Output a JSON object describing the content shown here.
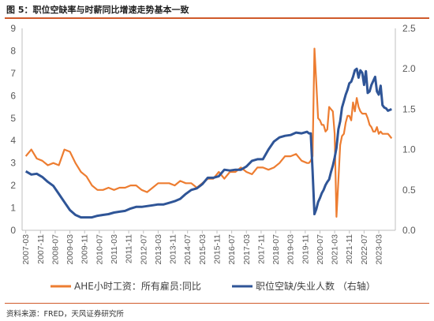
{
  "title": "图 5：职位空缺率与时薪同比增速走势基本一致",
  "source": "资料来源：FRED，天风证券研究所",
  "colors": {
    "orange": "#ED7D31",
    "blue": "#2F5597"
  },
  "legend": {
    "s1": "AHE小时工资：所有雇员:同比",
    "s2": "职位空缺/失业人数 （右轴）"
  },
  "chart_data": {
    "type": "line",
    "xlabel": "",
    "ylabel": "",
    "x_ticks": [
      "2007-03",
      "2007-11",
      "2008-07",
      "2009-03",
      "2009-11",
      "2010-07",
      "2011-03",
      "2011-11",
      "2012-07",
      "2013-03",
      "2013-11",
      "2014-07",
      "2015-03",
      "2015-11",
      "2016-07",
      "2017-03",
      "2017-11",
      "2018-07",
      "2019-03",
      "2019-11",
      "2020-07",
      "2021-03",
      "2021-11",
      "2022-07",
      "2023-03"
    ],
    "y_left": {
      "min": 0,
      "max": 9,
      "ticks": [
        "0",
        "1",
        "2",
        "3",
        "4",
        "5",
        "6",
        "7",
        "8",
        "9"
      ]
    },
    "y_right": {
      "min": 0,
      "max": 2.5,
      "ticks": [
        "0.0",
        "0.5",
        "1.0",
        "1.5",
        "2.0",
        "2.5"
      ]
    },
    "series": [
      {
        "name": "AHE小时工资：所有雇员:同比",
        "axis": "left",
        "color": "#ED7D31",
        "points": [
          [
            "2007-03",
            3.3
          ],
          [
            "2007-06",
            3.6
          ],
          [
            "2007-09",
            3.2
          ],
          [
            "2007-12",
            3.1
          ],
          [
            "2008-03",
            2.9
          ],
          [
            "2008-06",
            3.0
          ],
          [
            "2008-09",
            2.9
          ],
          [
            "2008-12",
            3.6
          ],
          [
            "2009-03",
            3.5
          ],
          [
            "2009-06",
            3.0
          ],
          [
            "2009-09",
            2.6
          ],
          [
            "2009-12",
            2.4
          ],
          [
            "2010-03",
            2.0
          ],
          [
            "2010-06",
            1.8
          ],
          [
            "2010-09",
            1.8
          ],
          [
            "2010-12",
            1.9
          ],
          [
            "2011-03",
            1.8
          ],
          [
            "2011-06",
            1.9
          ],
          [
            "2011-09",
            1.9
          ],
          [
            "2011-12",
            2.0
          ],
          [
            "2012-03",
            2.0
          ],
          [
            "2012-06",
            1.8
          ],
          [
            "2012-09",
            1.7
          ],
          [
            "2012-12",
            1.9
          ],
          [
            "2013-03",
            2.1
          ],
          [
            "2013-06",
            2.1
          ],
          [
            "2013-09",
            2.1
          ],
          [
            "2013-12",
            2.0
          ],
          [
            "2014-03",
            2.2
          ],
          [
            "2014-06",
            2.1
          ],
          [
            "2014-09",
            2.1
          ],
          [
            "2014-12",
            1.9
          ],
          [
            "2015-03",
            2.1
          ],
          [
            "2015-06",
            2.3
          ],
          [
            "2015-09",
            2.3
          ],
          [
            "2015-12",
            2.6
          ],
          [
            "2016-03",
            2.3
          ],
          [
            "2016-06",
            2.6
          ],
          [
            "2016-09",
            2.6
          ],
          [
            "2016-12",
            2.8
          ],
          [
            "2017-03",
            2.6
          ],
          [
            "2017-06",
            2.5
          ],
          [
            "2017-09",
            2.8
          ],
          [
            "2017-12",
            2.8
          ],
          [
            "2018-03",
            2.7
          ],
          [
            "2018-06",
            2.8
          ],
          [
            "2018-09",
            3.0
          ],
          [
            "2018-12",
            3.3
          ],
          [
            "2019-03",
            3.3
          ],
          [
            "2019-06",
            3.4
          ],
          [
            "2019-09",
            3.1
          ],
          [
            "2019-12",
            3.0
          ],
          [
            "2020-01",
            3.0
          ],
          [
            "2020-02",
            3.1
          ],
          [
            "2020-03",
            3.3
          ],
          [
            "2020-04",
            8.1
          ],
          [
            "2020-05",
            6.6
          ],
          [
            "2020-06",
            5.0
          ],
          [
            "2020-07",
            4.9
          ],
          [
            "2020-08",
            4.7
          ],
          [
            "2020-09",
            4.7
          ],
          [
            "2020-10",
            4.4
          ],
          [
            "2020-11",
            4.5
          ],
          [
            "2020-12",
            5.5
          ],
          [
            "2021-01",
            5.4
          ],
          [
            "2021-02",
            5.3
          ],
          [
            "2021-03",
            4.3
          ],
          [
            "2021-04",
            0.6
          ],
          [
            "2021-05",
            2.2
          ],
          [
            "2021-06",
            3.8
          ],
          [
            "2021-07",
            4.2
          ],
          [
            "2021-08",
            4.3
          ],
          [
            "2021-09",
            4.8
          ],
          [
            "2021-10",
            5.1
          ],
          [
            "2021-11",
            5.1
          ],
          [
            "2021-12",
            4.9
          ],
          [
            "2022-01",
            5.7
          ],
          [
            "2022-02",
            5.3
          ],
          [
            "2022-03",
            5.9
          ],
          [
            "2022-04",
            5.5
          ],
          [
            "2022-05",
            5.3
          ],
          [
            "2022-06",
            5.2
          ],
          [
            "2022-07",
            5.2
          ],
          [
            "2022-08",
            5.2
          ],
          [
            "2022-09",
            5.0
          ],
          [
            "2022-10",
            4.7
          ],
          [
            "2022-11",
            4.6
          ],
          [
            "2022-12",
            4.4
          ],
          [
            "2023-01",
            4.4
          ],
          [
            "2023-02",
            4.6
          ],
          [
            "2023-03",
            4.3
          ],
          [
            "2023-04",
            4.4
          ],
          [
            "2023-05",
            4.3
          ],
          [
            "2023-06",
            4.3
          ],
          [
            "2023-07",
            4.3
          ],
          [
            "2023-08",
            4.3
          ],
          [
            "2023-09",
            4.2
          ],
          [
            "2023-10",
            4.1
          ]
        ]
      },
      {
        "name": "职位空缺/失业人数 （右轴）",
        "axis": "right",
        "color": "#2F5597",
        "points": [
          [
            "2007-03",
            0.73
          ],
          [
            "2007-06",
            0.69
          ],
          [
            "2007-09",
            0.7
          ],
          [
            "2007-12",
            0.66
          ],
          [
            "2008-03",
            0.6
          ],
          [
            "2008-06",
            0.55
          ],
          [
            "2008-09",
            0.45
          ],
          [
            "2008-12",
            0.35
          ],
          [
            "2009-03",
            0.25
          ],
          [
            "2009-06",
            0.19
          ],
          [
            "2009-09",
            0.16
          ],
          [
            "2009-12",
            0.16
          ],
          [
            "2010-03",
            0.16
          ],
          [
            "2010-06",
            0.18
          ],
          [
            "2010-09",
            0.19
          ],
          [
            "2010-12",
            0.2
          ],
          [
            "2011-03",
            0.22
          ],
          [
            "2011-06",
            0.23
          ],
          [
            "2011-09",
            0.24
          ],
          [
            "2011-12",
            0.27
          ],
          [
            "2012-03",
            0.29
          ],
          [
            "2012-06",
            0.29
          ],
          [
            "2012-09",
            0.3
          ],
          [
            "2012-12",
            0.31
          ],
          [
            "2013-03",
            0.32
          ],
          [
            "2013-06",
            0.32
          ],
          [
            "2013-09",
            0.34
          ],
          [
            "2013-12",
            0.36
          ],
          [
            "2014-03",
            0.39
          ],
          [
            "2014-06",
            0.45
          ],
          [
            "2014-09",
            0.5
          ],
          [
            "2014-12",
            0.52
          ],
          [
            "2015-03",
            0.57
          ],
          [
            "2015-06",
            0.65
          ],
          [
            "2015-09",
            0.65
          ],
          [
            "2015-12",
            0.67
          ],
          [
            "2016-03",
            0.75
          ],
          [
            "2016-06",
            0.74
          ],
          [
            "2016-09",
            0.75
          ],
          [
            "2016-12",
            0.75
          ],
          [
            "2017-03",
            0.79
          ],
          [
            "2017-06",
            0.86
          ],
          [
            "2017-09",
            0.88
          ],
          [
            "2017-12",
            0.88
          ],
          [
            "2018-03",
            1.0
          ],
          [
            "2018-06",
            1.1
          ],
          [
            "2018-09",
            1.15
          ],
          [
            "2018-12",
            1.17
          ],
          [
            "2019-03",
            1.18
          ],
          [
            "2019-06",
            1.21
          ],
          [
            "2019-09",
            1.2
          ],
          [
            "2019-12",
            1.22
          ],
          [
            "2020-01",
            1.2
          ],
          [
            "2020-02",
            1.2
          ],
          [
            "2020-03",
            0.74
          ],
          [
            "2020-04",
            0.2
          ],
          [
            "2020-05",
            0.26
          ],
          [
            "2020-06",
            0.35
          ],
          [
            "2020-07",
            0.4
          ],
          [
            "2020-08",
            0.46
          ],
          [
            "2020-09",
            0.5
          ],
          [
            "2020-10",
            0.56
          ],
          [
            "2020-11",
            0.6
          ],
          [
            "2020-12",
            0.63
          ],
          [
            "2021-01",
            0.72
          ],
          [
            "2021-02",
            0.8
          ],
          [
            "2021-03",
            0.9
          ],
          [
            "2021-04",
            1.02
          ],
          [
            "2021-05",
            1.25
          ],
          [
            "2021-06",
            1.35
          ],
          [
            "2021-07",
            1.52
          ],
          [
            "2021-08",
            1.6
          ],
          [
            "2021-09",
            1.68
          ],
          [
            "2021-10",
            1.74
          ],
          [
            "2021-11",
            1.82
          ],
          [
            "2021-12",
            1.84
          ],
          [
            "2022-01",
            1.9
          ],
          [
            "2022-02",
            1.98
          ],
          [
            "2022-03",
            2.0
          ],
          [
            "2022-04",
            1.89
          ],
          [
            "2022-05",
            1.98
          ],
          [
            "2022-06",
            1.95
          ],
          [
            "2022-07",
            1.8
          ],
          [
            "2022-08",
            1.97
          ],
          [
            "2022-09",
            1.7
          ],
          [
            "2022-10",
            1.72
          ],
          [
            "2022-11",
            1.8
          ],
          [
            "2022-12",
            1.85
          ],
          [
            "2023-01",
            1.9
          ],
          [
            "2023-02",
            1.72
          ],
          [
            "2023-03",
            1.68
          ],
          [
            "2023-04",
            1.79
          ],
          [
            "2023-05",
            1.55
          ],
          [
            "2023-06",
            1.52
          ],
          [
            "2023-07",
            1.51
          ],
          [
            "2023-08",
            1.48
          ],
          [
            "2023-09",
            1.49
          ],
          [
            "2023-10",
            1.5
          ]
        ]
      }
    ]
  }
}
